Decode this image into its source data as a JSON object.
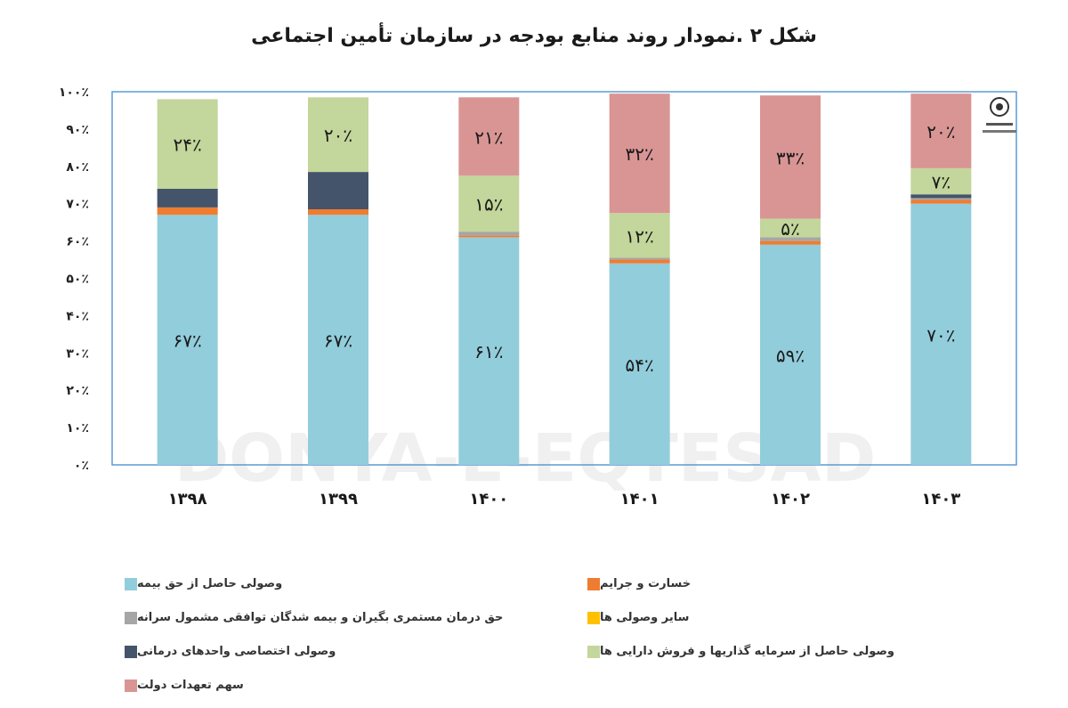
{
  "title": "شکل ۲ .نمودار روند منابع بودجه در سازمان تأمین اجتماعی",
  "watermark": "DONYA-E-EQTESAD",
  "chart_data": {
    "type": "bar",
    "stacked": true,
    "categories": [
      "۱۳۹۸",
      "۱۳۹۹",
      "۱۴۰۰",
      "۱۴۰۱",
      "۱۴۰۲",
      "۱۴۰۳"
    ],
    "y_ticks": [
      "۰٪",
      "۱۰٪",
      "۲۰٪",
      "۳۰٪",
      "۴۰٪",
      "۵۰٪",
      "۶۰٪",
      "۷۰٪",
      "۸۰٪",
      "۹۰٪",
      "۱۰۰٪"
    ],
    "ylim": [
      0,
      100
    ],
    "series": [
      {
        "name": "وصولی حاصل از حق بیمه",
        "color": "#92cddc",
        "values": [
          67,
          67,
          61,
          54,
          59,
          70
        ],
        "labels": [
          "۶۷٪",
          "۶۷٪",
          "۶۱٪",
          "۵۴٪",
          "۵۹٪",
          "۷۰٪"
        ]
      },
      {
        "name": "خسارت و جرایم",
        "color": "#ee7d31",
        "values": [
          2,
          1.5,
          0.5,
          1,
          1,
          1
        ],
        "labels": [
          "",
          "",
          "",
          "",
          "",
          ""
        ]
      },
      {
        "name": "حق درمان مستمری بگیران و بیمه شدگان توافقی مشمول سرانه",
        "color": "#a6a6a6",
        "values": [
          0,
          0,
          1,
          0.5,
          1,
          0.5
        ],
        "labels": [
          "",
          "",
          "",
          "",
          "",
          ""
        ]
      },
      {
        "name": "سایر وصولی ها",
        "color": "#ffc000",
        "values": [
          0,
          0,
          0,
          0,
          0,
          0
        ],
        "labels": [
          "",
          "",
          "",
          "",
          "",
          ""
        ]
      },
      {
        "name": "وصولی اختصاصی واحدهای درمانی",
        "color": "#44546a",
        "values": [
          5,
          10,
          0,
          0,
          0,
          1
        ],
        "labels": [
          "",
          "",
          "",
          "",
          "",
          ""
        ]
      },
      {
        "name": "وصولی حاصل از سرمایه گذاریها و فروش دارایی ها",
        "color": "#c3d69b",
        "values": [
          24,
          20,
          15,
          12,
          5,
          7
        ],
        "labels": [
          "۲۴٪",
          "۲۰٪",
          "۱۵٪",
          "۱۲٪",
          "۵٪",
          "۷٪"
        ]
      },
      {
        "name": "سهم تعهدات دولت",
        "color": "#d99594",
        "values": [
          0,
          0,
          21,
          32,
          33,
          20
        ],
        "labels": [
          "",
          "",
          "۲۱٪",
          "۳۲٪",
          "۳۳٪",
          "۲۰٪"
        ]
      }
    ],
    "legend_position": "bottom",
    "grid": false
  }
}
